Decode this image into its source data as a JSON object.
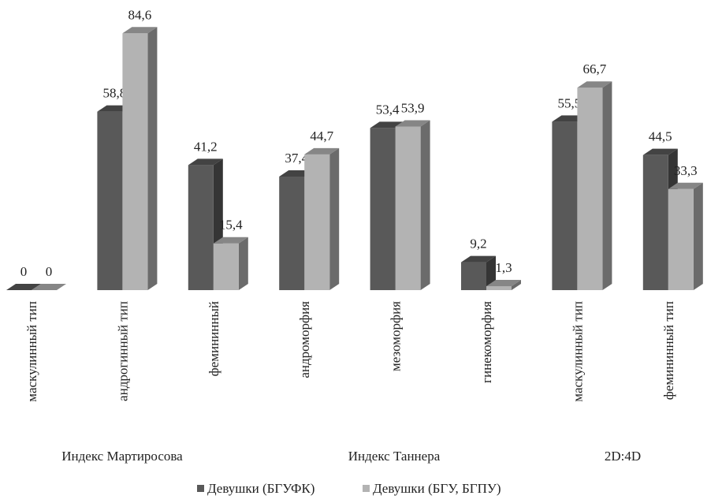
{
  "chart_data": {
    "type": "bar3d",
    "categories": [
      "маскулинный тип",
      "андрогинный тип",
      "фемининный",
      "андроморфия",
      "мезоморфия",
      "гинекоморфия",
      "маскулинный тип",
      "фемининный тип"
    ],
    "groups": [
      "Индекс Мартиросова",
      "Индекс Таннера",
      "2D:4D"
    ],
    "series": [
      {
        "name": "Девушки (БГУФК)",
        "color": "#595959",
        "values": [
          0,
          58.8,
          41.2,
          37.4,
          53.4,
          9.2,
          55.5,
          44.5
        ],
        "value_labels": [
          "0",
          "58,8",
          "41,2",
          "37,4",
          "53,4",
          "9,2",
          "55,5",
          "44,5"
        ]
      },
      {
        "name": "Девушки (БГУ, БГПУ)",
        "color": "#b3b3b3",
        "values": [
          0,
          84.6,
          15.4,
          44.7,
          53.9,
          1.3,
          66.7,
          33.3
        ],
        "value_labels": [
          "0",
          "84,6",
          "15,4",
          "44,7",
          "53,9",
          "1,3",
          "66,7",
          "33,3"
        ]
      }
    ],
    "legend": "bottom"
  }
}
